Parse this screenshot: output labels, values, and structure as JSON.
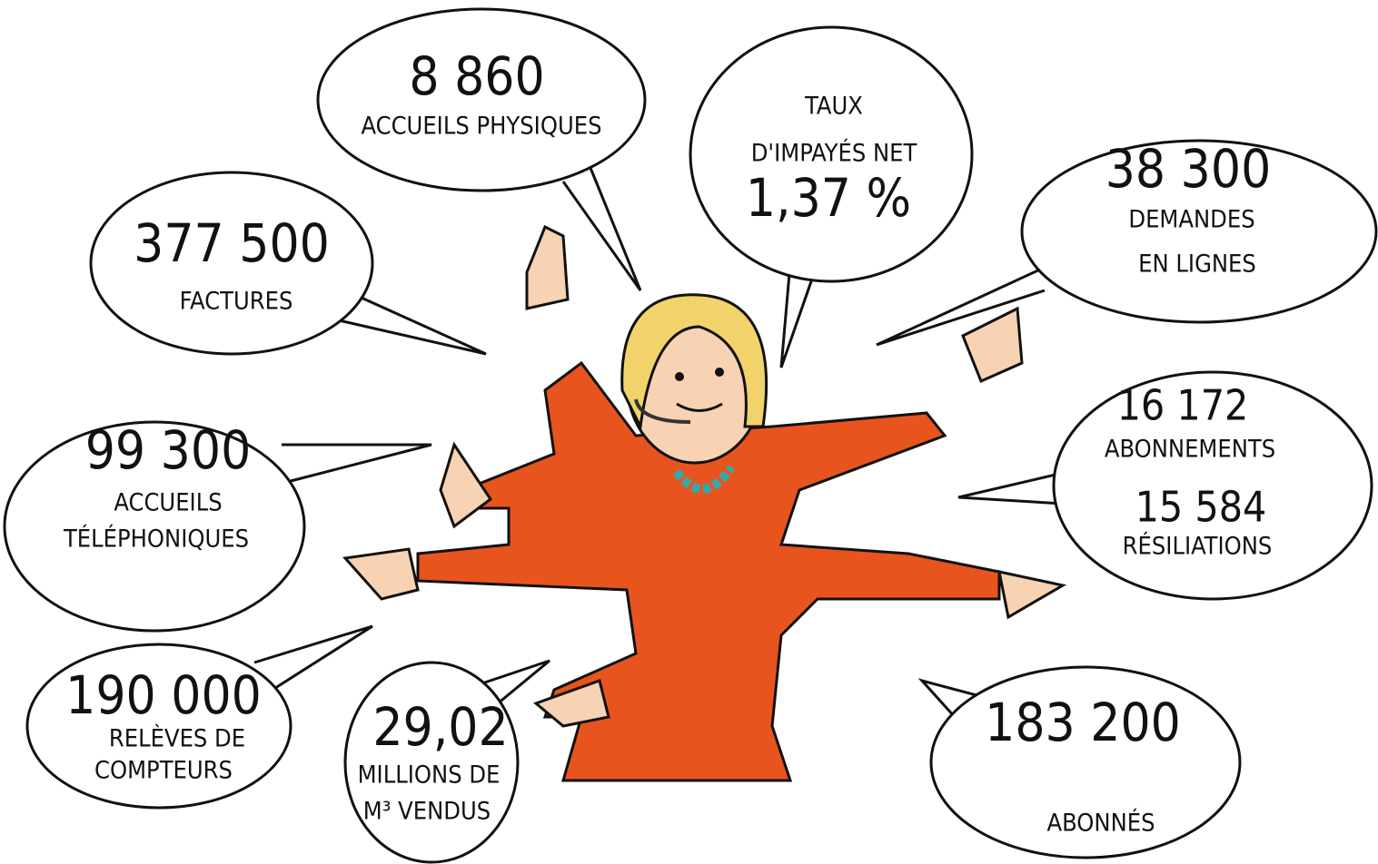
{
  "bubbles": [
    {
      "lines": [
        "8 860",
        "ACCUEILS PHYSIQUES"
      ]
    },
    {
      "lines": [
        "TAUX",
        "D'IMPAYÉS NET",
        "1,37 %"
      ]
    },
    {
      "lines": [
        "38 300",
        "DEMANDES",
        "EN LIGNES"
      ]
    },
    {
      "lines": [
        "377 500",
        "FACTURES"
      ]
    },
    {
      "lines": [
        "99 300",
        "ACCUEILS",
        "TÉLÉPHONIQUES"
      ]
    },
    {
      "lines": [
        "16 172",
        "ABONNEMENTS",
        "15 584",
        "RÉSILIATIONS"
      ]
    },
    {
      "lines": [
        "190 000",
        "RELÈVES DE",
        "COMPTEURS"
      ]
    },
    {
      "lines": [
        "29,02",
        "MILLIONS DE",
        "M³ VENDUS"
      ]
    },
    {
      "lines": [
        "183 200",
        "ABONNÉS"
      ]
    }
  ]
}
